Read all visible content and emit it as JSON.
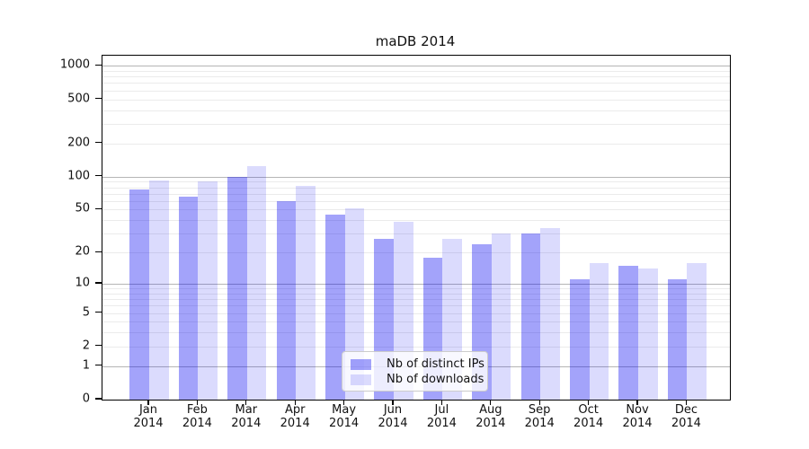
{
  "chart_data": {
    "type": "bar",
    "title": "maDB 2014",
    "categories": [
      {
        "line1": "Jan",
        "line2": "2014"
      },
      {
        "line1": "Feb",
        "line2": "2014"
      },
      {
        "line1": "Mar",
        "line2": "2014"
      },
      {
        "line1": "Apr",
        "line2": "2014"
      },
      {
        "line1": "May",
        "line2": "2014"
      },
      {
        "line1": "Jun",
        "line2": "2014"
      },
      {
        "line1": "Jul",
        "line2": "2014"
      },
      {
        "line1": "Aug",
        "line2": "2014"
      },
      {
        "line1": "Sep",
        "line2": "2014"
      },
      {
        "line1": "Oct",
        "line2": "2014"
      },
      {
        "line1": "Nov",
        "line2": "2014"
      },
      {
        "line1": "Dec",
        "line2": "2014"
      }
    ],
    "series": [
      {
        "name": "Nb of distinct IPs",
        "color": "#0000F05C",
        "values": [
          76,
          66,
          100,
          60,
          45,
          27,
          18,
          24,
          30,
          11,
          15,
          11
        ]
      },
      {
        "name": "Nb of downloads",
        "color": "#0000F024",
        "values": [
          92,
          91,
          125,
          82,
          51,
          39,
          27,
          30,
          34,
          16,
          14,
          16
        ]
      }
    ],
    "y_scale": "log1p",
    "ylim": [
      0,
      1234
    ],
    "y_ticks": [
      {
        "value": 0,
        "label": "0"
      },
      {
        "value": 1,
        "label": "1"
      },
      {
        "value": 2,
        "label": "2"
      },
      {
        "value": 5,
        "label": "5"
      },
      {
        "value": 10,
        "label": "10"
      },
      {
        "value": 20,
        "label": "20"
      },
      {
        "value": 50,
        "label": "50"
      },
      {
        "value": 100,
        "label": "100"
      },
      {
        "value": 200,
        "label": "200"
      },
      {
        "value": 500,
        "label": "500"
      },
      {
        "value": 1000,
        "label": "1000"
      }
    ],
    "grid": {
      "major": [
        1,
        10,
        100,
        1000
      ],
      "minor": [
        2,
        3,
        4,
        5,
        6,
        7,
        8,
        9,
        20,
        30,
        40,
        50,
        60,
        70,
        80,
        90,
        200,
        300,
        400,
        500,
        600,
        700,
        800,
        900
      ]
    },
    "legend_position": "lower center",
    "colors": {
      "grid_major": "#b5b5b5",
      "grid_minor": "#ebebeb",
      "axis": "#000000",
      "text": "#111111",
      "legend_border": "#cccccc"
    }
  }
}
